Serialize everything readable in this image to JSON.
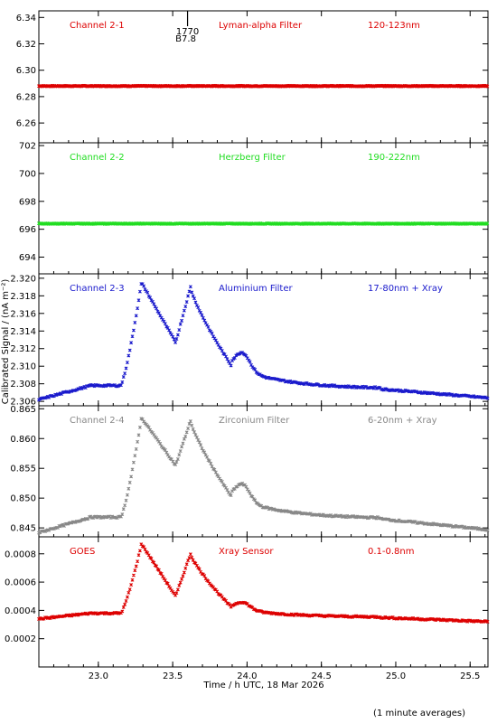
{
  "chart_data": {
    "type": "scatter",
    "xlabel": "Time / h UTC, 18 Mar 2026",
    "ylabel": "Calibrated Signal / (nA m⁻²)",
    "footnote": "(1 minute averages)",
    "xlim": [
      22.6,
      25.62
    ],
    "xticks": [
      23.0,
      23.5,
      24.0,
      24.5,
      25.0,
      25.5
    ],
    "xtick_labels": [
      "23.0",
      "23.5",
      "24.0",
      "24.5",
      "25.0",
      "25.5"
    ],
    "event_marker": {
      "x": 23.6,
      "label1": "1770",
      "label2": "B7.8"
    },
    "panels": [
      {
        "name": "Channel 2-1",
        "filter": "Lyman-alpha Filter",
        "band": "120-123nm",
        "color": "#dd0000",
        "ylim": [
          6.245,
          6.345
        ],
        "yticks": [
          6.26,
          6.28,
          6.3,
          6.32,
          6.34
        ],
        "ytick_labels": [
          "6.26",
          "6.28",
          "6.30",
          "6.32",
          "6.34"
        ],
        "shape": "flat",
        "base": 6.288
      },
      {
        "name": "Channel 2-2",
        "filter": "Herzberg Filter",
        "band": "190-222nm",
        "color": "#22dd22",
        "ylim": [
          692.8,
          702.2
        ],
        "yticks": [
          694,
          696,
          698,
          700,
          702
        ],
        "ytick_labels": [
          "694",
          "696",
          "698",
          "700",
          "702"
        ],
        "shape": "flat",
        "base": 696.4
      },
      {
        "name": "Channel 2-3",
        "filter": "Aluminium Filter",
        "band": "17-80nm + Xray",
        "color": "#1a1acc",
        "ylim": [
          2.3055,
          2.3205
        ],
        "yticks": [
          2.306,
          2.308,
          2.31,
          2.312,
          2.314,
          2.316,
          2.318,
          2.32
        ],
        "ytick_labels": [
          "2.306",
          "2.308",
          "2.310",
          "2.312",
          "2.314",
          "2.316",
          "2.318",
          "2.320"
        ],
        "shape": "flare",
        "base": 2.3062,
        "pre": 2.3078,
        "peak1": 2.3195,
        "dip": 2.3127,
        "peak2": 2.319,
        "bump": 2.312,
        "tail": 2.3074,
        "end": 2.3064
      },
      {
        "name": "Channel 2-4",
        "filter": "Zirconium Filter",
        "band": "6-20nm + Xray",
        "color": "#888888",
        "ylim": [
          0.8435,
          0.8655
        ],
        "yticks": [
          0.845,
          0.85,
          0.855,
          0.86,
          0.865
        ],
        "ytick_labels": [
          "0.845",
          "0.850",
          "0.855",
          "0.860",
          "0.865"
        ],
        "shape": "flare",
        "base": 0.8442,
        "pre": 0.8468,
        "peak1": 0.8635,
        "dip": 0.8555,
        "peak2": 0.863,
        "bump": 0.853,
        "tail": 0.8465,
        "end": 0.8447
      },
      {
        "name": "GOES",
        "filter": "Xray Sensor",
        "band": "0.1-0.8nm",
        "color": "#dd0000",
        "ylim": [
          0.0,
          0.00092
        ],
        "yticks": [
          0.0002,
          0.0004,
          0.0006,
          0.0008
        ],
        "ytick_labels": [
          "0.0002",
          "0.0004",
          "0.0006",
          "0.0008"
        ],
        "shape": "flare",
        "base": 0.00034,
        "pre": 0.00038,
        "peak1": 0.00087,
        "dip": 0.0005,
        "peak2": 0.0008,
        "bump": 0.00047,
        "tail": 0.00035,
        "end": 0.00032
      }
    ]
  }
}
